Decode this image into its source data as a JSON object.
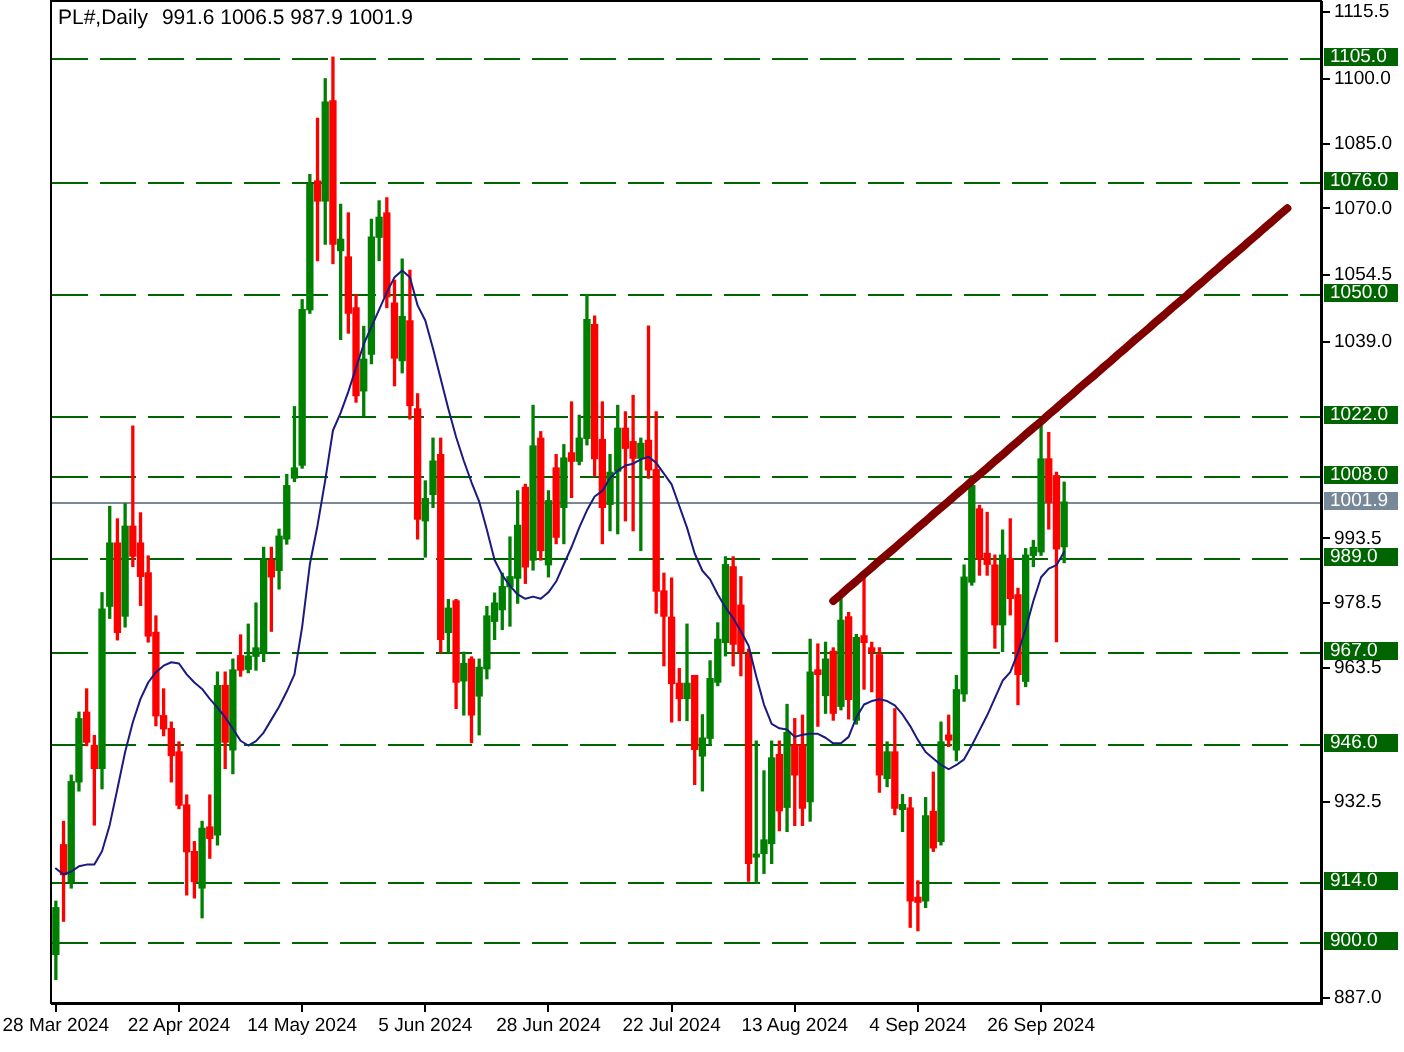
{
  "chart_data": {
    "type": "candlestick",
    "title": "PL#,Daily",
    "subtitle": "991.6 1006.5 987.9 1001.9",
    "categories": [
      "28 Mar 2024",
      null,
      null,
      null,
      null,
      null,
      null,
      null,
      null,
      null,
      null,
      null,
      null,
      null,
      null,
      null,
      "22 Apr 2024",
      null,
      null,
      null,
      null,
      null,
      null,
      null,
      null,
      null,
      null,
      null,
      null,
      null,
      null,
      null,
      "14 May 2024",
      null,
      null,
      null,
      null,
      null,
      null,
      null,
      null,
      null,
      null,
      null,
      null,
      null,
      null,
      null,
      "5 Jun 2024",
      null,
      null,
      null,
      null,
      null,
      null,
      null,
      null,
      null,
      null,
      null,
      null,
      null,
      null,
      null,
      "28 Jun 2024",
      null,
      null,
      null,
      null,
      null,
      null,
      null,
      null,
      null,
      null,
      null,
      null,
      null,
      null,
      null,
      "22 Jul 2024",
      null,
      null,
      null,
      null,
      null,
      null,
      null,
      null,
      null,
      null,
      null,
      null,
      null,
      null,
      null,
      "13 Aug 2024",
      null,
      null,
      null,
      null,
      null,
      null,
      null,
      null,
      null,
      null,
      null,
      null,
      null,
      null,
      null,
      "4 Sep 2024",
      null,
      null,
      null,
      null,
      null,
      null,
      null,
      null,
      null,
      null,
      null,
      null,
      null,
      null,
      null,
      "26 Sep 2024",
      null,
      null,
      null,
      null,
      null,
      null,
      null,
      null,
      null,
      null,
      null,
      null,
      null,
      null,
      null,
      null,
      null,
      null,
      null,
      null,
      null,
      null,
      null,
      null,
      null,
      null,
      null,
      null,
      null,
      null,
      null,
      null,
      null,
      null,
      null,
      null
    ],
    "ohlc": [
      [
        897.1,
        909.4,
        891.3,
        907.9
      ],
      [
        922.5,
        927.9,
        904.8,
        915.6
      ],
      [
        914.0,
        938.6,
        912.5,
        937.1
      ],
      [
        937.1,
        953.2,
        935.0,
        951.7
      ],
      [
        953.2,
        958.6,
        945.5,
        946.3
      ],
      [
        945.5,
        947.8,
        927.1,
        940.2
      ],
      [
        940.2,
        980.9,
        935.5,
        977.1
      ],
      [
        977.8,
        1000.9,
        975.0,
        992.4
      ],
      [
        992.4,
        998.0,
        970.0,
        971.7
      ],
      [
        975.5,
        1001.5,
        973.0,
        996.3
      ],
      [
        996.3,
        1019.5,
        987.0,
        989.4
      ],
      [
        992.4,
        999.4,
        978.0,
        984.7
      ],
      [
        985.5,
        989.4,
        969.5,
        970.9
      ],
      [
        971.7,
        975.5,
        950.1,
        952.4
      ],
      [
        952.4,
        958.6,
        947.8,
        949.4
      ],
      [
        949.4,
        950.9,
        937.1,
        943.2
      ],
      [
        944.0,
        946.3,
        930.9,
        931.7
      ],
      [
        931.7,
        934.0,
        910.9,
        920.9
      ],
      [
        920.9,
        923.2,
        910.2,
        914.0
      ],
      [
        912.5,
        927.9,
        905.6,
        926.3
      ],
      [
        926.6,
        934.0,
        919.4,
        924.0
      ],
      [
        924.8,
        962.5,
        922.5,
        959.4
      ],
      [
        959.4,
        962.5,
        940.2,
        946.3
      ],
      [
        944.5,
        965.5,
        939.0,
        963.0
      ],
      [
        966.3,
        971.1,
        961.6,
        963.0
      ],
      [
        963.2,
        973.6,
        962.4,
        966.2
      ],
      [
        966.2,
        978.5,
        963.0,
        968.1
      ],
      [
        967.0,
        991.4,
        965.0,
        988.4
      ],
      [
        988.4,
        991.4,
        972.0,
        984.6
      ],
      [
        986.1,
        995.6,
        981.8,
        994.0
      ],
      [
        993.4,
        1008.3,
        992.2,
        1005.7
      ],
      [
        1007.5,
        1024.0,
        1006.7,
        1009.8
      ],
      [
        1010.5,
        1048.8,
        1009.8,
        1046.5
      ],
      [
        1046.5,
        1077.8,
        1045.7,
        1075.5
      ],
      [
        1076.3,
        1090.8,
        1057.9,
        1071.7
      ],
      [
        1071.7,
        1100.0,
        1061.7,
        1094.6
      ],
      [
        1094.9,
        1105.0,
        1057.2,
        1061.7
      ],
      [
        1060.2,
        1070.9,
        1039.6,
        1062.8
      ],
      [
        1058.7,
        1068.9,
        1041.1,
        1045.7
      ],
      [
        1046.9,
        1050.0,
        1025.1,
        1026.6
      ],
      [
        1027.7,
        1042.6,
        1022.0,
        1035.0
      ],
      [
        1036.2,
        1067.4,
        1034.0,
        1063.3
      ],
      [
        1063.3,
        1071.7,
        1057.9,
        1067.9
      ],
      [
        1068.9,
        1072.4,
        1047.0,
        1049.5
      ],
      [
        1048.0,
        1053.3,
        1028.9,
        1035.3
      ],
      [
        1034.7,
        1058.2,
        1031.9,
        1044.9
      ],
      [
        1043.9,
        1055.6,
        1021.2,
        1024.3
      ],
      [
        1023.5,
        1027.0,
        993.4,
        998.0
      ],
      [
        997.6,
        1006.8,
        989.2,
        1002.7
      ],
      [
        1003.7,
        1016.7,
        1000.7,
        1011.4
      ],
      [
        1012.9,
        1016.7,
        967.1,
        970.1
      ],
      [
        971.7,
        979.3,
        967.1,
        977.3
      ],
      [
        979.0,
        979.3,
        954.1,
        960.2
      ],
      [
        960.5,
        967.1,
        952.6,
        964.5
      ],
      [
        965.5,
        966.0,
        946.2,
        952.6
      ],
      [
        957.0,
        965.5,
        948.0,
        963.6
      ],
      [
        963.3,
        977.7,
        961.0,
        975.5
      ],
      [
        974.3,
        980.8,
        970.1,
        978.5
      ],
      [
        977.0,
        985.4,
        972.4,
        982.3
      ],
      [
        982.3,
        993.8,
        973.2,
        984.6
      ],
      [
        984.3,
        1004.5,
        978.5,
        996.5
      ],
      [
        1005.3,
        1006.0,
        983.1,
        986.9
      ],
      [
        988.5,
        1024.3,
        986.2,
        1014.9
      ],
      [
        1016.7,
        1018.2,
        988.5,
        990.7
      ],
      [
        987.4,
        1004.5,
        984.6,
        1002.2
      ],
      [
        1009.8,
        1012.9,
        992.3,
        993.8
      ],
      [
        1000.7,
        1015.2,
        992.3,
        1012.1
      ],
      [
        1013.3,
        1025.1,
        1003.0,
        1011.4
      ],
      [
        1011.4,
        1022.0,
        1010.6,
        1016.7
      ],
      [
        1016.7,
        1050.0,
        1015.2,
        1044.2
      ],
      [
        1043.0,
        1045.0,
        1008.0,
        1012.0
      ],
      [
        1016.4,
        1025.1,
        992.3,
        1000.7
      ],
      [
        1001.4,
        1012.9,
        995.3,
        1008.8
      ],
      [
        1009.1,
        1024.3,
        994.6,
        1019.0
      ],
      [
        1019.0,
        1022.8,
        997.6,
        1014.4
      ],
      [
        1015.9,
        1026.6,
        995.3,
        1012.1
      ],
      [
        1012.1,
        1016.7,
        990.7,
        1015.5
      ],
      [
        1016.2,
        1042.7,
        1007.5,
        1009.4
      ],
      [
        1009.4,
        1022.8,
        976.2,
        981.3
      ],
      [
        981.3,
        985.4,
        964.0,
        975.5
      ],
      [
        975.2,
        984.3,
        951.0,
        959.9
      ],
      [
        959.9,
        963.3,
        951.3,
        956.4
      ],
      [
        956.4,
        973.6,
        951.3,
        959.9
      ],
      [
        961.7,
        961.7,
        936.5,
        944.6
      ],
      [
        943.1,
        952.6,
        935.0,
        947.2
      ],
      [
        947.2,
        965.1,
        945.7,
        961.0
      ],
      [
        960.2,
        973.9,
        959.4,
        970.1
      ],
      [
        969.4,
        989.2,
        966.3,
        987.4
      ],
      [
        986.9,
        989.2,
        964.0,
        969.0
      ],
      [
        978.0,
        984.6,
        961.7,
        967.1
      ],
      [
        966.6,
        967.8,
        914.1,
        918.2
      ],
      [
        919.7,
        946.5,
        913.6,
        920.3
      ],
      [
        920.5,
        939.6,
        915.9,
        923.6
      ],
      [
        922.8,
        946.5,
        918.2,
        942.6
      ],
      [
        943.4,
        946.5,
        925.8,
        930.4
      ],
      [
        931.2,
        955.0,
        925.6,
        948.5
      ],
      [
        945.6,
        951.7,
        927.0,
        938.7
      ],
      [
        945.6,
        952.5,
        927.0,
        931.0
      ],
      [
        932.5,
        970.1,
        928.0,
        962.5
      ],
      [
        963.0,
        969.0,
        950.0,
        962.0
      ],
      [
        957.1,
        969.4,
        953.0,
        965.5
      ],
      [
        967.3,
        968.1,
        951.4,
        953.0
      ],
      [
        954.6,
        979.7,
        953.8,
        974.5
      ],
      [
        975.3,
        976.3,
        951.7,
        956.2
      ],
      [
        951.4,
        971.2,
        950.5,
        970.5
      ],
      [
        970.9,
        985.0,
        958.6,
        969.4
      ],
      [
        968.1,
        969.4,
        958.0,
        967.2
      ],
      [
        966.5,
        968.1,
        934.7,
        938.7
      ],
      [
        937.9,
        946.3,
        936.0,
        944.0
      ],
      [
        944.0,
        954.0,
        929.5,
        931.0
      ],
      [
        930.7,
        934.1,
        925.6,
        931.8
      ],
      [
        931.0,
        933.4,
        903.4,
        909.5
      ],
      [
        910.3,
        914.1,
        902.6,
        909.2
      ],
      [
        909.5,
        933.4,
        908.0,
        929.2
      ],
      [
        930.2,
        939.3,
        921.0,
        921.8
      ],
      [
        923.3,
        950.9,
        922.5,
        946.3
      ],
      [
        947.9,
        952.5,
        945.3,
        946.8
      ],
      [
        944.5,
        961.7,
        942.0,
        958.4
      ],
      [
        957.5,
        987.3,
        955.8,
        984.5
      ],
      [
        983.4,
        1008.0,
        982.7,
        1005.7
      ],
      [
        1000.3,
        1001.1,
        985.0,
        988.8
      ],
      [
        990.0,
        999.5,
        985.0,
        987.5
      ],
      [
        987.3,
        989.6,
        968.1,
        973.5
      ],
      [
        973.5,
        995.4,
        967.3,
        989.6
      ],
      [
        988.8,
        998.0,
        975.8,
        979.6
      ],
      [
        980.4,
        981.9,
        955.0,
        962.0
      ],
      [
        960.4,
        991.1,
        959.2,
        989.6
      ],
      [
        989.6,
        993.0,
        987.0,
        991.4
      ],
      [
        990.4,
        1021.1,
        989.6,
        1011.9
      ],
      [
        1011.9,
        1018.0,
        995.7,
        1001.9
      ],
      [
        1008.0,
        1008.8,
        969.6,
        991.1
      ],
      [
        991.6,
        1006.5,
        987.9,
        1001.9
      ],
      null,
      null,
      null,
      null,
      null,
      null,
      null,
      null,
      null,
      null,
      null,
      null,
      null,
      null,
      null,
      null,
      null,
      null,
      null,
      null,
      null,
      null,
      null,
      null,
      null,
      null,
      null,
      null,
      null,
      null,
      null,
      null,
      null
    ],
    "colors": [
      "#008000",
      "#ff0000",
      "#008000",
      "#008000",
      "#ff0000",
      "#ff0000",
      "#008000",
      "#008000",
      "#ff0000",
      "#008000",
      "#ff0000",
      "#ff0000",
      "#ff0000",
      "#ff0000",
      "#ff0000",
      "#ff0000",
      "#ff0000",
      "#ff0000",
      "#ff0000",
      "#008000",
      "#ff0000",
      "#008000",
      "#ff0000",
      "#008000",
      "#ff0000",
      "#008000",
      "#008000",
      "#008000",
      "#ff0000",
      "#008000",
      "#008000",
      "#008000",
      "#008000",
      "#008000",
      "#ff0000",
      "#008000",
      "#ff0000",
      "#008000",
      "#ff0000",
      "#ff0000",
      "#008000",
      "#008000",
      "#008000",
      "#ff0000",
      "#ff0000",
      "#008000",
      "#ff0000",
      "#ff0000",
      "#008000",
      "#008000",
      "#ff0000",
      "#008000",
      "#ff0000",
      "#008000",
      "#ff0000",
      "#008000",
      "#008000",
      "#008000",
      "#008000",
      "#008000",
      "#008000",
      "#ff0000",
      "#008000",
      "#ff0000",
      "#008000",
      "#ff0000",
      "#008000",
      "#ff0000",
      "#008000",
      "#008000",
      "#ff0000",
      "#ff0000",
      "#008000",
      "#008000",
      "#ff0000",
      "#ff0000",
      "#008000",
      "#ff0000",
      "#ff0000",
      "#ff0000",
      "#ff0000",
      "#ff0000",
      "#008000",
      "#ff0000",
      "#008000",
      "#008000",
      "#008000",
      "#008000",
      "#ff0000",
      "#ff0000",
      "#ff0000",
      "#008000",
      "#008000",
      "#008000",
      "#ff0000",
      "#008000",
      "#ff0000",
      "#ff0000",
      "#008000",
      "#ff0000",
      "#008000",
      "#ff0000",
      "#008000",
      "#ff0000",
      "#008000",
      "#ff0000",
      "#ff0000",
      "#ff0000",
      "#008000",
      "#ff0000",
      "#008000",
      "#ff0000",
      "#ff0000",
      "#008000",
      "#ff0000",
      "#008000",
      "#ff0000",
      "#008000",
      "#008000",
      "#008000",
      "#ff0000",
      "#ff0000",
      "#ff0000",
      "#008000",
      "#ff0000",
      "#ff0000",
      "#008000",
      "#008000",
      "#008000",
      "#ff0000",
      "#ff0000",
      "#008000",
      null,
      null,
      null,
      null,
      null,
      null,
      null,
      null,
      null,
      null,
      null,
      null,
      null,
      null,
      null,
      null,
      null,
      null,
      null,
      null,
      null,
      null,
      null,
      null,
      null,
      null,
      null,
      null,
      null,
      null,
      null,
      null,
      null
    ],
    "series": [
      {
        "type": "line",
        "color": "#1a1a80",
        "values": [
          917.0,
          915.6,
          916.3,
          917.5,
          917.9,
          917.9,
          921.0,
          927.1,
          935.5,
          944.0,
          950.9,
          956.3,
          960.1,
          962.5,
          964.0,
          964.8,
          964.5,
          962.0,
          960.1,
          958.6,
          956.3,
          954.3,
          952.0,
          949.4,
          946.6,
          945.5,
          946.5,
          948.5,
          951.5,
          954.5,
          958.0,
          962.0,
          973.0,
          987.5,
          996.5,
          1007.0,
          1018.5,
          1022.6,
          1027.5,
          1033.0,
          1038.5,
          1042.5,
          1046.5,
          1050.5,
          1054.0,
          1055.6,
          1054.0,
          1047.5,
          1044.0,
          1037.5,
          1030.5,
          1023.5,
          1017.0,
          1011.5,
          1006.5,
          1002.0,
          995.5,
          988.5,
          985.0,
          982.5,
          980.5,
          979.5,
          980.0,
          979.5,
          981.0,
          983.5,
          987.5,
          991.5,
          996.0,
          1000.0,
          1003.2,
          1004.5,
          1007.5,
          1009.2,
          1010.4,
          1010.8,
          1011.8,
          1012.4,
          1011.0,
          1008.5,
          1006.0,
          1001.0,
          996.0,
          990.0,
          986.0,
          984.0,
          980.5,
          977.5,
          975.0,
          972.0,
          968.6,
          961.5,
          955.0,
          950.5,
          949.5,
          949.2,
          947.5,
          948.0,
          948.2,
          948.2,
          947.3,
          946.0,
          946.0,
          947.5,
          952.0,
          955.0,
          955.8,
          956.2,
          955.8,
          954.8,
          952.7,
          950.0,
          946.8,
          944.0,
          942.5,
          941.0,
          940.0,
          941.0,
          942.3,
          945.5,
          949.0,
          952.5,
          956.5,
          960.5,
          962.5,
          967.0,
          972.5,
          979.0,
          984.5,
          986.5,
          987.3,
          990.4,
          null,
          null,
          null,
          null,
          null,
          null,
          null,
          null,
          null,
          null,
          null,
          null,
          null,
          null,
          null,
          null,
          null,
          null,
          null,
          null,
          null,
          null,
          null,
          null,
          null,
          null,
          null,
          null,
          null,
          null,
          null,
          null,
          null
        ]
      },
      {
        "type": "line",
        "color": "#800000",
        "values": [
          null,
          null,
          null,
          null,
          null,
          null,
          null,
          null,
          null,
          null,
          null,
          null,
          null,
          null,
          null,
          null,
          null,
          null,
          null,
          null,
          null,
          null,
          null,
          null,
          null,
          null,
          null,
          null,
          null,
          null,
          null,
          null,
          null,
          null,
          null,
          null,
          null,
          null,
          null,
          null,
          null,
          null,
          null,
          null,
          null,
          null,
          null,
          null,
          null,
          null,
          null,
          null,
          null,
          null,
          null,
          null,
          null,
          null,
          null,
          null,
          null,
          null,
          null,
          null,
          null,
          null,
          null,
          null,
          null,
          null,
          null,
          null,
          null,
          null,
          null,
          null,
          null,
          null,
          null,
          null,
          null,
          null,
          null,
          null,
          null,
          null,
          null,
          null,
          null,
          null,
          null,
          null,
          null,
          null,
          null,
          null,
          null,
          null,
          null,
          null,
          null,
          979.0,
          980.5,
          982.1,
          983.6,
          985.2,
          986.7,
          988.3,
          989.8,
          991.3,
          992.9,
          994.4,
          996.0,
          997.5,
          999.1,
          1000.6,
          1002.1,
          1003.7,
          1005.2,
          1006.8,
          1008.3,
          1009.8,
          1011.4,
          1012.9,
          1014.5,
          1016.0,
          1017.6,
          1019.1,
          1020.6,
          1022.2,
          1023.7,
          1025.3,
          1026.8,
          1028.4,
          1029.9,
          1031.4,
          1033.0,
          1034.5,
          1036.1,
          1037.6,
          1039.2,
          1040.7,
          1042.2,
          1043.8,
          1045.3,
          1046.9,
          1048.4,
          1049.9,
          1051.5,
          1053.0,
          1054.6,
          1056.1,
          1057.7,
          1059.2,
          1060.7,
          1062.3,
          1063.8,
          1065.4,
          1066.9,
          1068.5,
          1070.0,
          null,
          null,
          null,
          null
        ]
      }
    ],
    "ylim": [
      885.6,
      1117.8
    ],
    "yticks": [
      {
        "value": 887,
        "label": "887.0"
      },
      {
        "value": 932.5,
        "label": "932.5"
      },
      {
        "value": 963.5,
        "label": "963.5"
      },
      {
        "value": 978.5,
        "label": "978.5"
      },
      {
        "value": 993.5,
        "label": "993.5"
      },
      {
        "value": 1039,
        "label": "1039.0"
      },
      {
        "value": 1054.5,
        "label": "1054.5"
      },
      {
        "value": 1070,
        "label": "1070.0"
      },
      {
        "value": 1085,
        "label": "1085.0"
      },
      {
        "value": 1100,
        "label": "1100.0"
      },
      {
        "value": 1115.5,
        "label": "1115.5"
      }
    ],
    "ref_lines": [
      {
        "axis": "y",
        "value": 1105,
        "label": "1105.0",
        "color": "#006400",
        "line_style": "dashed"
      },
      {
        "axis": "y",
        "value": 1076,
        "label": "1076.0",
        "color": "#006400",
        "line_style": "dashed"
      },
      {
        "axis": "y",
        "value": 1050,
        "label": "1050.0",
        "color": "#006400",
        "line_style": "dashed"
      },
      {
        "axis": "y",
        "value": 1022,
        "label": "1022.0",
        "color": "#006400",
        "line_style": "dashed"
      },
      {
        "axis": "y",
        "value": 1008,
        "label": "1008.0",
        "color": "#006400",
        "line_style": "dashed"
      },
      {
        "axis": "y",
        "value": 1001.9,
        "label": "1001.9",
        "color": "#778899",
        "line_style": "solid"
      },
      {
        "axis": "y",
        "value": 989,
        "label": "989.0",
        "color": "#006400",
        "line_style": "dashed"
      },
      {
        "axis": "y",
        "value": 967,
        "label": "967.0",
        "color": "#006400",
        "line_style": "dashed"
      },
      {
        "axis": "y",
        "value": 946,
        "label": "946.0",
        "color": "#006400",
        "line_style": "dashed"
      },
      {
        "axis": "y",
        "value": 914,
        "label": "914.0",
        "color": "#006400",
        "line_style": "dashed"
      },
      {
        "axis": "y",
        "value": 900,
        "label": "900.0",
        "color": "#006400",
        "line_style": "dashed"
      }
    ]
  }
}
